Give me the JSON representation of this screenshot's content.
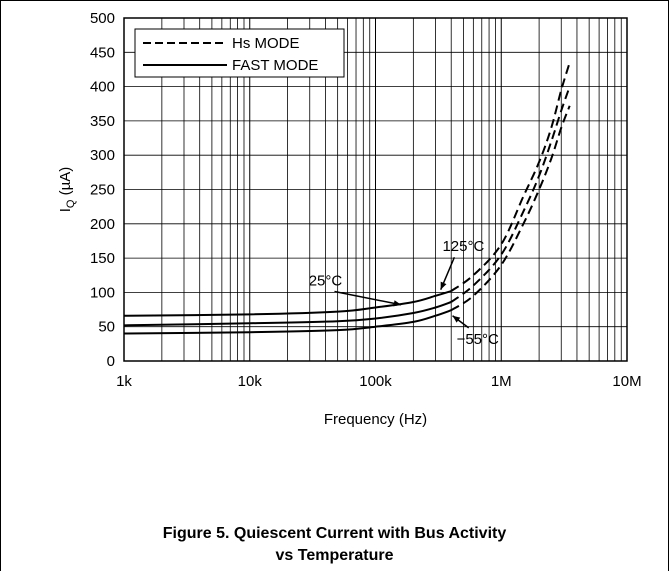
{
  "chart_data": {
    "type": "line",
    "xscale": "log",
    "xlim": [
      1000,
      10000000
    ],
    "ylim": [
      0,
      500
    ],
    "grid": true,
    "xlabel": "Frequency (Hz)",
    "ylabel_main": "I",
    "ylabel_sub": "Q",
    "ylabel_rest": " (µA)",
    "xticks": [
      {
        "value": 1000,
        "label": "1k"
      },
      {
        "value": 10000,
        "label": "10k"
      },
      {
        "value": 100000,
        "label": "100k"
      },
      {
        "value": 1000000,
        "label": "1M"
      },
      {
        "value": 10000000,
        "label": "10M"
      }
    ],
    "yticks": [
      0,
      50,
      100,
      150,
      200,
      250,
      300,
      350,
      400,
      450,
      500
    ],
    "legend": {
      "position": "top-left",
      "entries": [
        {
          "label": "Hs MODE",
          "style": "dashed"
        },
        {
          "label": "FAST MODE",
          "style": "solid"
        }
      ]
    },
    "series": [
      {
        "temp": "125°C",
        "style": "solid",
        "x": [
          1000,
          10000,
          50000,
          100000,
          200000,
          300000,
          400000
        ],
        "y": [
          66,
          68,
          72,
          78,
          86,
          95,
          102
        ]
      },
      {
        "temp": "125°C",
        "style": "dashed",
        "x": [
          400000,
          600000,
          1000000,
          1500000,
          2000000,
          2500000,
          3000000,
          3500000
        ],
        "y": [
          102,
          125,
          170,
          240,
          290,
          340,
          395,
          435
        ]
      },
      {
        "temp": "25°C",
        "style": "solid",
        "x": [
          1000,
          10000,
          50000,
          100000,
          200000,
          300000,
          400000
        ],
        "y": [
          52,
          55,
          58,
          62,
          70,
          78,
          86
        ]
      },
      {
        "temp": "25°C",
        "style": "dashed",
        "x": [
          400000,
          600000,
          1000000,
          1500000,
          2000000,
          2500000,
          3000000,
          3500000
        ],
        "y": [
          86,
          110,
          155,
          218,
          270,
          320,
          365,
          400
        ]
      },
      {
        "temp": "-55°C",
        "style": "solid",
        "x": [
          1000,
          10000,
          50000,
          100000,
          200000,
          300000,
          400000
        ],
        "y": [
          40,
          42,
          45,
          50,
          57,
          66,
          74
        ]
      },
      {
        "temp": "-55°C",
        "style": "dashed",
        "x": [
          400000,
          600000,
          1000000,
          1500000,
          2000000,
          2500000,
          3000000,
          3500000
        ],
        "y": [
          74,
          95,
          140,
          200,
          250,
          295,
          340,
          372
        ]
      }
    ],
    "annotations": [
      {
        "text": "125°C",
        "x": 500000,
        "y": 160,
        "arrow_to": [
          330000,
          104
        ]
      },
      {
        "text": "25°C",
        "x": 40000,
        "y": 110,
        "arrow_to": [
          160000,
          82
        ]
      },
      {
        "text": "−55°C",
        "x": 650000,
        "y": 25,
        "arrow_to": [
          410000,
          66
        ]
      }
    ]
  },
  "caption": {
    "line1": "Figure 5. Quiescent Current with Bus Activity",
    "line2": "vs Temperature"
  }
}
